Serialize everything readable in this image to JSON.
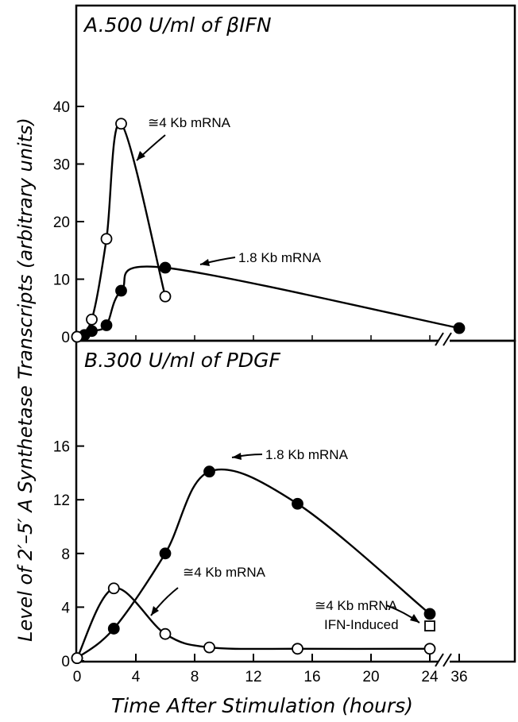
{
  "chart_data": [
    {
      "panel": "A",
      "type": "line",
      "title": "A.500 U/ml of βIFN",
      "ylim": [
        0,
        45
      ],
      "yticks": [
        0,
        10,
        20,
        30,
        40
      ],
      "series": [
        {
          "name": "1.8 Kb mRNA",
          "marker": "filled-circle",
          "points": [
            [
              0,
              0
            ],
            [
              0.5,
              0.3
            ],
            [
              1,
              1
            ],
            [
              2,
              2
            ],
            [
              3,
              8
            ],
            [
              6,
              12
            ],
            [
              36,
              1.5
            ]
          ]
        },
        {
          "name": "≅4 Kb mRNA",
          "marker": "open-circle",
          "points": [
            [
              0,
              0
            ],
            [
              1,
              3
            ],
            [
              2,
              17
            ],
            [
              3,
              37
            ],
            [
              6,
              7
            ]
          ]
        }
      ],
      "annotations": [
        "≅4 Kb mRNA",
        "1.8 Kb mRNA"
      ]
    },
    {
      "panel": "B",
      "type": "line",
      "title": "B.300 U/ml of PDGF",
      "ylim": [
        0,
        18
      ],
      "yticks": [
        0,
        4,
        8,
        12,
        16
      ],
      "series": [
        {
          "name": "1.8 Kb mRNA",
          "marker": "filled-circle",
          "points": [
            [
              0,
              0.2
            ],
            [
              2.5,
              2.4
            ],
            [
              6,
              8
            ],
            [
              9,
              14.1
            ],
            [
              15,
              11.7
            ],
            [
              24,
              3.5
            ]
          ]
        },
        {
          "name": "≅4 Kb mRNA",
          "marker": "open-circle",
          "points": [
            [
              0,
              0.2
            ],
            [
              2.5,
              5.4
            ],
            [
              6,
              2
            ],
            [
              9,
              1
            ],
            [
              15,
              0.9
            ],
            [
              24,
              0.9
            ]
          ]
        },
        {
          "name": "≅4 Kb mRNA IFN-Induced",
          "marker": "open-square",
          "points": [
            [
              24,
              2.6
            ]
          ]
        }
      ],
      "annotations": [
        "1.8 Kb mRNA",
        "≅4 Kb mRNA",
        "≅4 Kb mRNA",
        "IFN-Induced"
      ]
    }
  ],
  "xaxis": {
    "label": "Time After Stimulation (hours)",
    "ticks": [
      0,
      4,
      8,
      12,
      16,
      20,
      24,
      36
    ],
    "break_between": [
      24,
      36
    ]
  },
  "yaxis": {
    "label": "Level of 2′–5′ A Synthetase Transcripts (arbitrary units)"
  }
}
